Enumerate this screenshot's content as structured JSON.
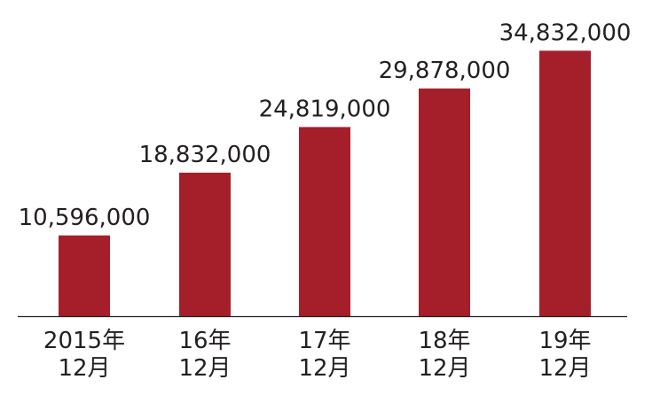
{
  "chart_data": {
    "type": "bar",
    "categories": [
      {
        "line1": "2015年",
        "line2": "12月"
      },
      {
        "line1": "16年",
        "line2": "12月"
      },
      {
        "line1": "17年",
        "line2": "12月"
      },
      {
        "line1": "18年",
        "line2": "12月"
      },
      {
        "line1": "19年",
        "line2": "12月"
      }
    ],
    "values": [
      10596000,
      18832000,
      24819000,
      29878000,
      34832000
    ],
    "value_labels": [
      "10,596,000",
      "18,832,000",
      "24,819,000",
      "29,878,000",
      "34,832,000"
    ],
    "title": "",
    "xlabel": "",
    "ylabel": "",
    "ylim": [
      0,
      38000000
    ],
    "grid": false,
    "legend": "none",
    "bar_color": "#a51f2a",
    "axis_color": "#231f20"
  }
}
